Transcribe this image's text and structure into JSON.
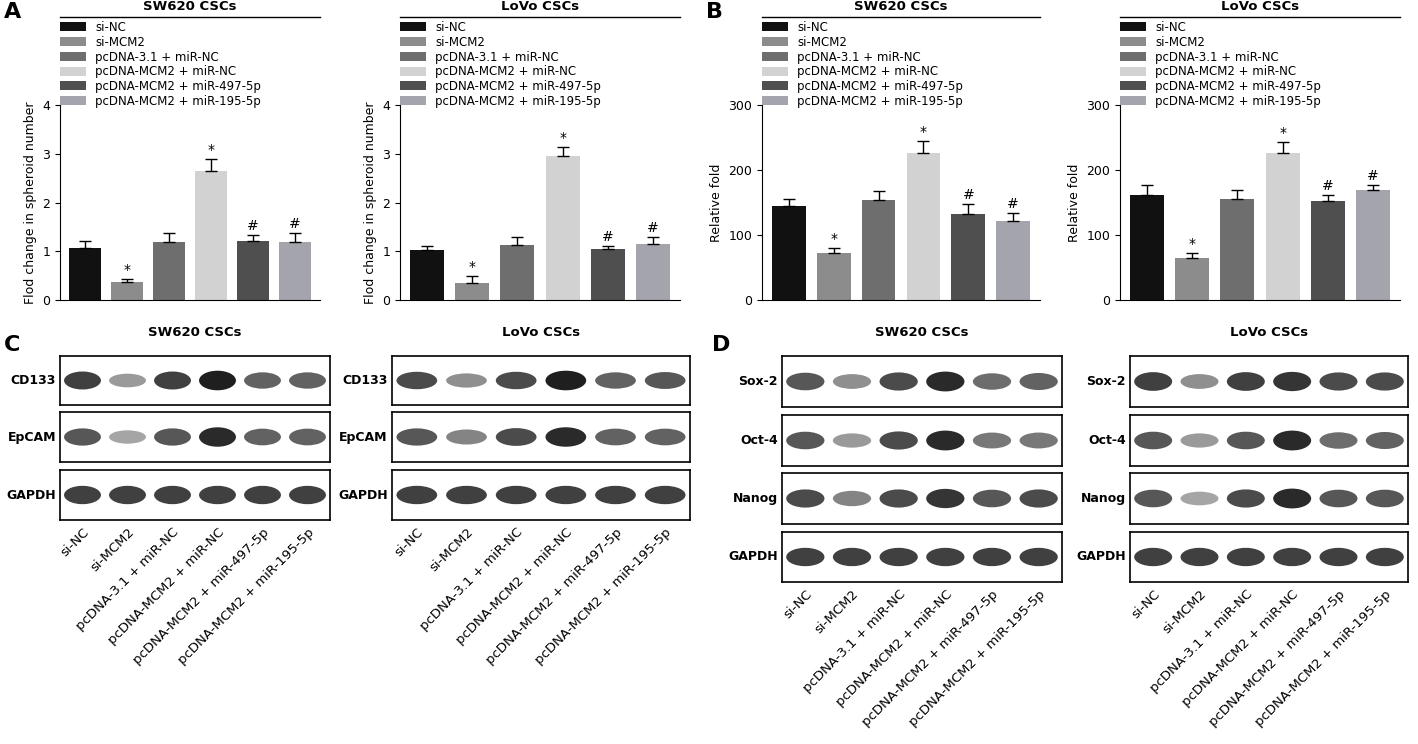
{
  "chart_data": [
    {
      "type": "bar",
      "panel": "A",
      "title": "SW620 CSCs",
      "ylabel": "Flod change in spheroid number",
      "categories": [
        "si-NC",
        "si-MCM2",
        "pcDNA-3.1 + miR-NC",
        "pcDNA-MCM2 + miR-NC",
        "pcDNA-MCM2 + miR-497-5p",
        "pcDNA-MCM2 + miR-195-5p"
      ],
      "values": [
        1.07,
        0.37,
        1.18,
        2.65,
        1.22,
        1.18
      ],
      "errors": [
        0.15,
        0.07,
        0.2,
        0.25,
        0.12,
        0.2
      ],
      "significance": [
        null,
        "*",
        null,
        "*",
        "#",
        "#"
      ],
      "colors": [
        "#111111",
        "#8c8c8c",
        "#6e6e6e",
        "#d2d2d2",
        "#4f4f4f",
        "#a4a4ac"
      ],
      "ylim": [
        0,
        4
      ],
      "yticks": [
        0,
        1,
        2,
        3,
        4
      ],
      "legend": "upper left",
      "tick_labels": "y"
    },
    {
      "type": "bar",
      "panel": "A",
      "title": "LoVo CSCs",
      "ylabel": "Flod change in spheroid number",
      "categories": [
        "si-NC",
        "si-MCM2",
        "pcDNA-3.1 + miR-NC",
        "pcDNA-MCM2 + miR-NC",
        "pcDNA-MCM2 + miR-497-5p",
        "pcDNA-MCM2 + miR-195-5p"
      ],
      "values": [
        1.03,
        0.35,
        1.12,
        2.95,
        1.05,
        1.15
      ],
      "errors": [
        0.08,
        0.15,
        0.18,
        0.18,
        0.06,
        0.15
      ],
      "significance": [
        null,
        "*",
        null,
        "*",
        "#",
        "#"
      ],
      "colors": [
        "#111111",
        "#8c8c8c",
        "#6e6e6e",
        "#d2d2d2",
        "#4f4f4f",
        "#a4a4ac"
      ],
      "ylim": [
        0,
        4
      ],
      "yticks": [
        0,
        1,
        2,
        3,
        4
      ],
      "legend": "upper left",
      "tick_labels": "y"
    },
    {
      "type": "bar",
      "panel": "B",
      "title": "SW620 CSCs",
      "ylabel": "Relative fold",
      "categories": [
        "si-NC",
        "si-MCM2",
        "pcDNA-3.1 + miR-NC",
        "pcDNA-MCM2 + miR-NC",
        "pcDNA-MCM2 + miR-497-5p",
        "pcDNA-MCM2 + miR-195-5p"
      ],
      "values": [
        145,
        72,
        154,
        226,
        133,
        122
      ],
      "errors": [
        10,
        8,
        14,
        18,
        15,
        12
      ],
      "significance": [
        null,
        "*",
        null,
        "*",
        "#",
        "#"
      ],
      "colors": [
        "#111111",
        "#8c8c8c",
        "#6e6e6e",
        "#d2d2d2",
        "#4f4f4f",
        "#a4a4ac"
      ],
      "ylim": [
        0,
        300
      ],
      "yticks": [
        0,
        100,
        200,
        300
      ],
      "legend": "upper left",
      "tick_labels": "y"
    },
    {
      "type": "bar",
      "panel": "B",
      "title": "LoVo CSCs",
      "ylabel": "Relative fold",
      "categories": [
        "si-NC",
        "si-MCM2",
        "pcDNA-3.1 + miR-NC",
        "pcDNA-MCM2 + miR-NC",
        "pcDNA-MCM2 + miR-497-5p",
        "pcDNA-MCM2 + miR-195-5p"
      ],
      "values": [
        162,
        65,
        155,
        226,
        152,
        169
      ],
      "errors": [
        15,
        7,
        15,
        17,
        10,
        8
      ],
      "significance": [
        null,
        "*",
        null,
        "*",
        "#",
        "#"
      ],
      "colors": [
        "#111111",
        "#8c8c8c",
        "#6e6e6e",
        "#d2d2d2",
        "#4f4f4f",
        "#a4a4ac"
      ],
      "ylim": [
        0,
        300
      ],
      "yticks": [
        0,
        100,
        200,
        300
      ],
      "legend": "upper left",
      "tick_labels": "y"
    }
  ],
  "blot_panels": [
    {
      "label": "C",
      "groups": [
        {
          "title": "SW620 CSCs",
          "lanes": [
            "si-NC",
            "si-MCM2",
            "pcDNA-3.1 + miR-NC",
            "pcDNA-MCM2 + miR-NC",
            "pcDNA-MCM2 + miR-497-5p",
            "pcDNA-MCM2 + miR-195-5p"
          ],
          "rows": [
            {
              "name": "CD133",
              "bands": [
                0.85,
                0.45,
                0.85,
                1.0,
                0.7,
                0.7
              ]
            },
            {
              "name": "EpCAM",
              "bands": [
                0.75,
                0.4,
                0.75,
                0.95,
                0.7,
                0.7
              ]
            },
            {
              "name": "GAPDH",
              "bands": [
                0.85,
                0.85,
                0.85,
                0.85,
                0.85,
                0.85
              ]
            }
          ]
        },
        {
          "title": "LoVo CSCs",
          "lanes": [
            "si-NC",
            "si-MCM2",
            "pcDNA-3.1 + miR-NC",
            "pcDNA-MCM2 + miR-NC",
            "pcDNA-MCM2 + miR-497-5p",
            "pcDNA-MCM2 + miR-195-5p"
          ],
          "rows": [
            {
              "name": "CD133",
              "bands": [
                0.8,
                0.5,
                0.8,
                1.0,
                0.7,
                0.75
              ]
            },
            {
              "name": "EpCAM",
              "bands": [
                0.75,
                0.55,
                0.8,
                0.95,
                0.7,
                0.7
              ]
            },
            {
              "name": "GAPDH",
              "bands": [
                0.85,
                0.85,
                0.85,
                0.85,
                0.85,
                0.85
              ]
            }
          ]
        }
      ]
    },
    {
      "label": "D",
      "groups": [
        {
          "title": "SW620 CSCs",
          "lanes": [
            "si-NC",
            "si-MCM2",
            "pcDNA-3.1 + miR-NC",
            "pcDNA-MCM2 + miR-NC",
            "pcDNA-MCM2 + miR-497-5p",
            "pcDNA-MCM2 + miR-195-5p"
          ],
          "rows": [
            {
              "name": "Sox-2",
              "bands": [
                0.75,
                0.5,
                0.8,
                0.95,
                0.65,
                0.7
              ]
            },
            {
              "name": "Oct-4",
              "bands": [
                0.75,
                0.45,
                0.8,
                0.95,
                0.6,
                0.6
              ]
            },
            {
              "name": "Nanog",
              "bands": [
                0.8,
                0.55,
                0.8,
                0.9,
                0.75,
                0.8
              ]
            },
            {
              "name": "GAPDH",
              "bands": [
                0.85,
                0.85,
                0.85,
                0.85,
                0.85,
                0.85
              ]
            }
          ]
        },
        {
          "title": "LoVo CSCs",
          "lanes": [
            "si-NC",
            "si-MCM2",
            "pcDNA-3.1 + miR-NC",
            "pcDNA-MCM2 + miR-NC",
            "pcDNA-MCM2 + miR-497-5p",
            "pcDNA-MCM2 + miR-195-5p"
          ],
          "rows": [
            {
              "name": "Sox-2",
              "bands": [
                0.85,
                0.5,
                0.85,
                0.9,
                0.8,
                0.8
              ]
            },
            {
              "name": "Oct-4",
              "bands": [
                0.75,
                0.45,
                0.75,
                0.95,
                0.65,
                0.7
              ]
            },
            {
              "name": "Nanog",
              "bands": [
                0.75,
                0.4,
                0.8,
                0.95,
                0.75,
                0.75
              ]
            },
            {
              "name": "GAPDH",
              "bands": [
                0.85,
                0.85,
                0.85,
                0.85,
                0.85,
                0.85
              ]
            }
          ]
        }
      ]
    }
  ]
}
